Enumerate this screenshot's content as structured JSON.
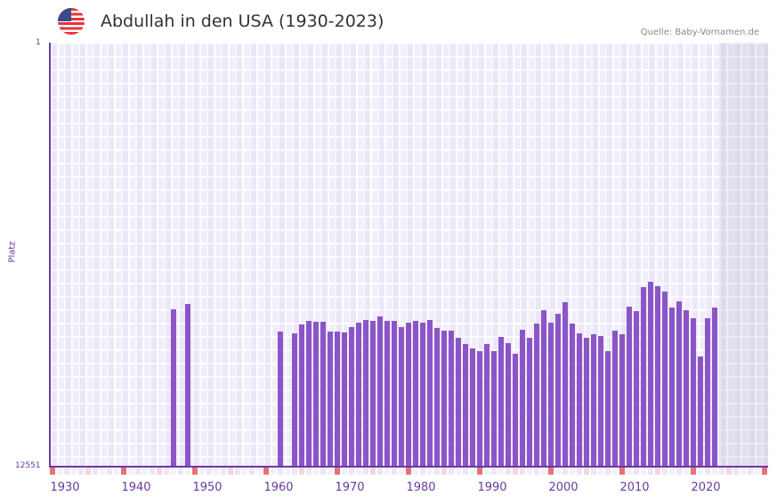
{
  "header": {
    "title": "Abdullah in den USA (1930-2023)",
    "source": "Quelle: Baby-Vornamen.de",
    "flag": "us-flag-icon"
  },
  "colors": {
    "bar": "#8c55c7",
    "axis": "#6a3aa0",
    "marker_strong": "#e57373",
    "marker_light": "#f5d5dd",
    "grid": "#f1eefb"
  },
  "axis": {
    "y_top_label": "1",
    "y_bottom_label": "12551",
    "y_title": "Platz",
    "x_labels": [
      "1930",
      "1940",
      "1950",
      "1960",
      "1970",
      "1980",
      "1990",
      "2000",
      "2010",
      "2020"
    ]
  },
  "chart_data": {
    "type": "bar",
    "title": "Abdullah in den USA (1930-2023)",
    "xlabel": "",
    "ylabel": "Platz",
    "ylim": [
      12551,
      1
    ],
    "y_inverted": true,
    "x_range": [
      1928,
      2028
    ],
    "years": [
      1945,
      1947,
      1960,
      1962,
      1963,
      1964,
      1965,
      1966,
      1967,
      1968,
      1969,
      1970,
      1971,
      1972,
      1973,
      1974,
      1975,
      1976,
      1977,
      1978,
      1979,
      1980,
      1981,
      1982,
      1983,
      1984,
      1985,
      1986,
      1987,
      1988,
      1989,
      1990,
      1991,
      1992,
      1993,
      1994,
      1995,
      1996,
      1997,
      1998,
      1999,
      2000,
      2001,
      2002,
      2003,
      2004,
      2005,
      2006,
      2007,
      2008,
      2009,
      2010,
      2011,
      2012,
      2013,
      2014,
      2015,
      2016,
      2017,
      2018,
      2019,
      2020,
      2021
    ],
    "ranks": [
      7910,
      7750,
      8560,
      8610,
      8350,
      8240,
      8270,
      8270,
      8560,
      8560,
      8590,
      8430,
      8300,
      8220,
      8240,
      8110,
      8240,
      8240,
      8430,
      8300,
      8240,
      8300,
      8220,
      8460,
      8530,
      8530,
      8750,
      8930,
      9060,
      9140,
      8930,
      9140,
      8720,
      8900,
      9220,
      8510,
      8750,
      8320,
      7930,
      8300,
      8030,
      7690,
      8320,
      8610,
      8750,
      8640,
      8690,
      9140,
      8530,
      8660,
      7820,
      7960,
      7240,
      7090,
      7220,
      7380,
      7850,
      7670,
      7930,
      8170,
      9300,
      8170,
      7850
    ],
    "legend": []
  }
}
